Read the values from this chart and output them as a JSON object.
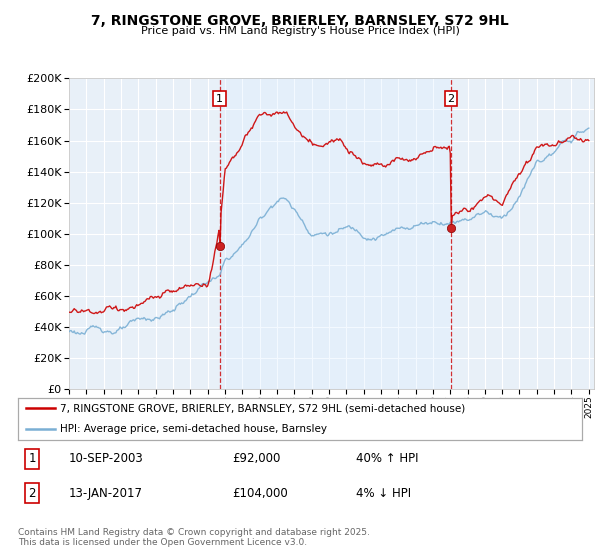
{
  "title": "7, RINGSTONE GROVE, BRIERLEY, BARNSLEY, S72 9HL",
  "subtitle": "Price paid vs. HM Land Registry's House Price Index (HPI)",
  "ylim": [
    0,
    200000
  ],
  "yticks": [
    0,
    20000,
    40000,
    60000,
    80000,
    100000,
    120000,
    140000,
    160000,
    180000,
    200000
  ],
  "sale1_year": 2003.69,
  "sale1_price": 92000,
  "sale1_label": "10-SEP-2003",
  "sale1_price_label": "£92,000",
  "sale1_hpi_label": "40% ↑ HPI",
  "sale2_year": 2017.04,
  "sale2_price": 104000,
  "sale2_label": "13-JAN-2017",
  "sale2_price_label": "£104,000",
  "sale2_hpi_label": "4% ↓ HPI",
  "legend_line1": "7, RINGSTONE GROVE, BRIERLEY, BARNSLEY, S72 9HL (semi-detached house)",
  "legend_line2": "HPI: Average price, semi-detached house, Barnsley",
  "footer": "Contains HM Land Registry data © Crown copyright and database right 2025.\nThis data is licensed under the Open Government Licence v3.0.",
  "red_color": "#cc0000",
  "blue_color": "#7aafd4",
  "fill_color": "#ddeeff",
  "bg_color": "#e8f0f8",
  "grid_color": "#ffffff",
  "hpi_knots_x": [
    1995,
    1996,
    1997,
    1998,
    1999,
    2000,
    2001,
    2002,
    2003,
    2003.69,
    2004,
    2005,
    2006,
    2007,
    2007.5,
    2008,
    2009,
    2010,
    2011,
    2012,
    2013,
    2014,
    2015,
    2016,
    2017,
    2017.04,
    2018,
    2019,
    2020,
    2021,
    2022,
    2023,
    2024,
    2025
  ],
  "hpi_knots_y": [
    37000,
    36500,
    37500,
    38000,
    39500,
    41000,
    46000,
    55000,
    64000,
    65000,
    74000,
    84000,
    100000,
    115000,
    116000,
    108000,
    95000,
    96000,
    98000,
    95000,
    97000,
    99000,
    103000,
    106000,
    108000,
    108000,
    112000,
    118000,
    114000,
    130000,
    150000,
    155000,
    162000,
    168000
  ],
  "house_knots_x": [
    1995,
    1996,
    1997,
    1998,
    1999,
    2000,
    2001,
    2002,
    2003,
    2003.69,
    2004,
    2005,
    2006,
    2007,
    2007.5,
    2008,
    2009,
    2010,
    2011,
    2012,
    2013,
    2014,
    2015,
    2016,
    2017.0,
    2017.04,
    2018,
    2019,
    2020,
    2021,
    2022,
    2023,
    2024,
    2025
  ],
  "house_knots_y": [
    49500,
    49000,
    49500,
    50000,
    51000,
    52000,
    52500,
    53000,
    54000,
    92000,
    130000,
    148000,
    162000,
    163000,
    160000,
    152000,
    136000,
    135000,
    138000,
    132000,
    135000,
    138000,
    140000,
    145000,
    150000,
    104000,
    108000,
    115000,
    112000,
    130000,
    150000,
    155000,
    158000,
    160000
  ]
}
